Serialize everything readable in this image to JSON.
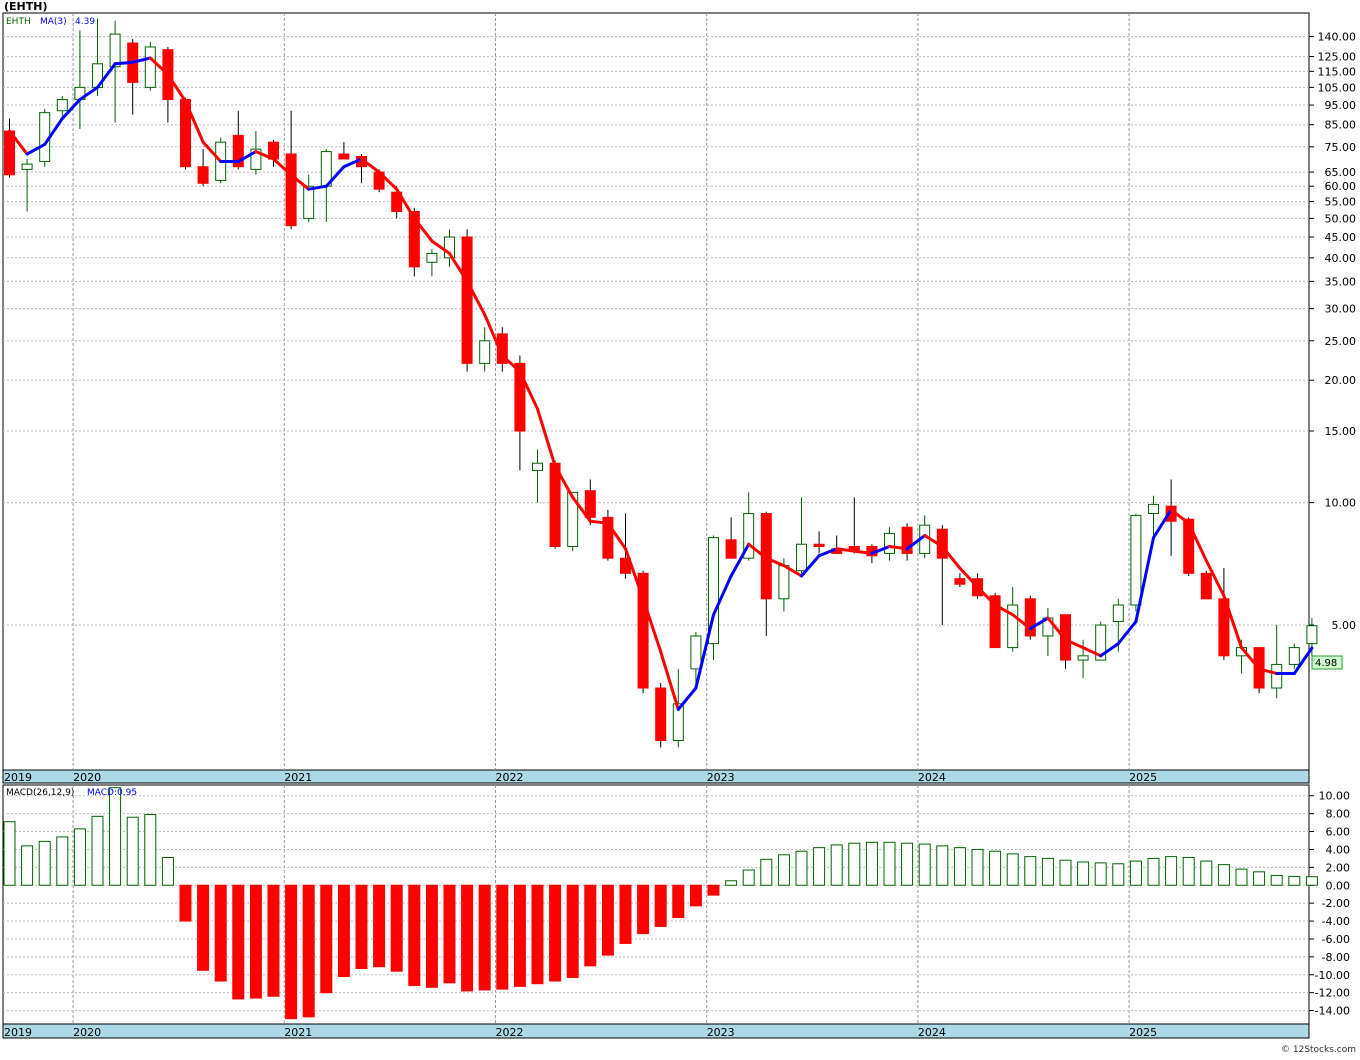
{
  "header": {
    "ticker_title": "(EHTH)",
    "price_legend_ticker": "EHTH",
    "price_legend_ma": "MA(3)",
    "price_legend_ma_value": "4.39",
    "macd_legend_label": "MACD(26,12,9)",
    "macd_legend_value": "MACD:0.95",
    "last_price_badge": "4.98",
    "watermark": "© 12Stocks.com"
  },
  "colors": {
    "up_candle": "#006400",
    "down_candle": "#ff0000",
    "ma_up": "#0000ff",
    "ma_down": "#ff0000",
    "grid": "#bbbbbb",
    "axis_band": "#add8e6",
    "badge_bg": "#ccffcc"
  },
  "chart_data": [
    {
      "type": "candlestick",
      "name": "price",
      "scale": "log",
      "ylim": [
        2.2,
        160
      ],
      "y_ticks": [
        140,
        125,
        115,
        105,
        95,
        85,
        75,
        65,
        60,
        55,
        50,
        45,
        40,
        35,
        30,
        25,
        20,
        15,
        10,
        5
      ],
      "y_tick_labels": [
        "140.00",
        "125.00",
        "115.00",
        "105.00",
        "95.00",
        "85.00",
        "75.00",
        "65.00",
        "60.00",
        "55.00",
        "50.00",
        "45.00",
        "40.00",
        "35.00",
        "30.00",
        "25.00",
        "20.00",
        "15.00",
        "10.00",
        "5.00"
      ],
      "x_labels": [
        "2019",
        "2020",
        "2021",
        "2022",
        "2023",
        "2024",
        "2025"
      ],
      "x_label_months": [
        0,
        4,
        16,
        28,
        40,
        52,
        64
      ],
      "candles": [
        {
          "o": 82,
          "h": 88,
          "l": 63,
          "c": 64
        },
        {
          "o": 66,
          "h": 70,
          "l": 52,
          "c": 68
        },
        {
          "o": 69,
          "h": 93,
          "l": 67,
          "c": 91
        },
        {
          "o": 92,
          "h": 100,
          "l": 88,
          "c": 98
        },
        {
          "o": 98,
          "h": 145,
          "l": 83,
          "c": 105
        },
        {
          "o": 105,
          "h": 155,
          "l": 100,
          "c": 120
        },
        {
          "o": 118,
          "h": 153,
          "l": 86,
          "c": 142
        },
        {
          "o": 135,
          "h": 138,
          "l": 90,
          "c": 108
        },
        {
          "o": 105,
          "h": 136,
          "l": 103,
          "c": 132
        },
        {
          "o": 130,
          "h": 132,
          "l": 86,
          "c": 98
        },
        {
          "o": 98,
          "h": 99,
          "l": 66,
          "c": 67
        },
        {
          "o": 67,
          "h": 74,
          "l": 60,
          "c": 61
        },
        {
          "o": 62,
          "h": 79,
          "l": 61,
          "c": 77
        },
        {
          "o": 80,
          "h": 92,
          "l": 66,
          "c": 67
        },
        {
          "o": 66,
          "h": 82,
          "l": 64,
          "c": 74
        },
        {
          "o": 77,
          "h": 78,
          "l": 67,
          "c": 70
        },
        {
          "o": 72,
          "h": 92,
          "l": 47,
          "c": 48
        },
        {
          "o": 50,
          "h": 64,
          "l": 49,
          "c": 60
        },
        {
          "o": 60,
          "h": 74,
          "l": 49,
          "c": 73
        },
        {
          "o": 72,
          "h": 77,
          "l": 70,
          "c": 70
        },
        {
          "o": 71,
          "h": 72,
          "l": 61,
          "c": 67
        },
        {
          "o": 65,
          "h": 66,
          "l": 58,
          "c": 59
        },
        {
          "o": 58,
          "h": 60,
          "l": 50,
          "c": 52
        },
        {
          "o": 52,
          "h": 53,
          "l": 36,
          "c": 38
        },
        {
          "o": 39,
          "h": 42,
          "l": 36,
          "c": 41
        },
        {
          "o": 40,
          "h": 47,
          "l": 38,
          "c": 45
        },
        {
          "o": 45,
          "h": 47,
          "l": 21,
          "c": 22
        },
        {
          "o": 22,
          "h": 27,
          "l": 21,
          "c": 25
        },
        {
          "o": 26,
          "h": 27,
          "l": 21,
          "c": 22
        },
        {
          "o": 22,
          "h": 23,
          "l": 12,
          "c": 15
        },
        {
          "o": 12,
          "h": 13.5,
          "l": 10,
          "c": 12.5
        },
        {
          "o": 12.5,
          "h": 12.7,
          "l": 7.7,
          "c": 7.8
        },
        {
          "o": 7.8,
          "h": 10.6,
          "l": 7.6,
          "c": 10.6
        },
        {
          "o": 10.7,
          "h": 11.4,
          "l": 8.8,
          "c": 9.2
        },
        {
          "o": 9.2,
          "h": 9.6,
          "l": 7.2,
          "c": 7.3
        },
        {
          "o": 7.3,
          "h": 9.4,
          "l": 6.5,
          "c": 6.7
        },
        {
          "o": 6.7,
          "h": 6.8,
          "l": 3.4,
          "c": 3.5
        },
        {
          "o": 3.5,
          "h": 3.6,
          "l": 2.5,
          "c": 2.6
        },
        {
          "o": 2.6,
          "h": 3.9,
          "l": 2.5,
          "c": 3.2
        },
        {
          "o": 3.9,
          "h": 4.8,
          "l": 3.5,
          "c": 4.7
        },
        {
          "o": 4.5,
          "h": 8.3,
          "l": 4.1,
          "c": 8.2
        },
        {
          "o": 8.1,
          "h": 9.2,
          "l": 7.3,
          "c": 7.3
        },
        {
          "o": 7.3,
          "h": 10.6,
          "l": 7.2,
          "c": 9.4
        },
        {
          "o": 9.4,
          "h": 9.5,
          "l": 4.7,
          "c": 5.8
        },
        {
          "o": 5.8,
          "h": 7.3,
          "l": 5.4,
          "c": 7.0
        },
        {
          "o": 6.8,
          "h": 10.3,
          "l": 6.7,
          "c": 7.9
        },
        {
          "o": 7.9,
          "h": 8.5,
          "l": 7.5,
          "c": 7.8
        },
        {
          "o": 7.7,
          "h": 8.3,
          "l": 7.5,
          "c": 7.5
        },
        {
          "o": 7.8,
          "h": 10.3,
          "l": 7.5,
          "c": 7.6
        },
        {
          "o": 7.8,
          "h": 7.9,
          "l": 7.1,
          "c": 7.4
        },
        {
          "o": 7.5,
          "h": 8.7,
          "l": 7.2,
          "c": 8.4
        },
        {
          "o": 8.7,
          "h": 8.9,
          "l": 7.2,
          "c": 7.5
        },
        {
          "o": 7.5,
          "h": 9.3,
          "l": 7.3,
          "c": 8.8
        },
        {
          "o": 8.6,
          "h": 8.8,
          "l": 5.0,
          "c": 7.3
        },
        {
          "o": 6.5,
          "h": 6.7,
          "l": 6.2,
          "c": 6.3
        },
        {
          "o": 6.5,
          "h": 6.7,
          "l": 5.8,
          "c": 5.9
        },
        {
          "o": 5.9,
          "h": 6.0,
          "l": 4.4,
          "c": 4.4
        },
        {
          "o": 4.4,
          "h": 6.2,
          "l": 4.3,
          "c": 5.6
        },
        {
          "o": 5.8,
          "h": 5.9,
          "l": 4.6,
          "c": 4.7
        },
        {
          "o": 4.7,
          "h": 5.5,
          "l": 4.2,
          "c": 5.2
        },
        {
          "o": 5.3,
          "h": 5.3,
          "l": 3.9,
          "c": 4.1
        },
        {
          "o": 4.1,
          "h": 4.6,
          "l": 3.7,
          "c": 4.2
        },
        {
          "o": 4.1,
          "h": 5.1,
          "l": 4.1,
          "c": 5.0
        },
        {
          "o": 5.1,
          "h": 5.8,
          "l": 4.3,
          "c": 5.6
        },
        {
          "o": 5.6,
          "h": 9.4,
          "l": 5.4,
          "c": 9.3
        },
        {
          "o": 9.4,
          "h": 10.4,
          "l": 8.3,
          "c": 9.9
        },
        {
          "o": 9.8,
          "h": 11.4,
          "l": 7.4,
          "c": 9.0
        },
        {
          "o": 9.1,
          "h": 9.2,
          "l": 6.6,
          "c": 6.7
        },
        {
          "o": 6.7,
          "h": 6.8,
          "l": 5.8,
          "c": 5.8
        },
        {
          "o": 5.8,
          "h": 6.9,
          "l": 4.1,
          "c": 4.2
        },
        {
          "o": 4.2,
          "h": 4.6,
          "l": 3.8,
          "c": 4.4
        },
        {
          "o": 4.4,
          "h": 4.4,
          "l": 3.4,
          "c": 3.5
        },
        {
          "o": 3.5,
          "h": 5.0,
          "l": 3.3,
          "c": 4.0
        },
        {
          "o": 4.0,
          "h": 4.5,
          "l": 3.9,
          "c": 4.4
        },
        {
          "o": 4.5,
          "h": 5.2,
          "l": 4.2,
          "c": 4.98
        }
      ],
      "ma3": [
        82,
        72,
        76,
        88,
        98,
        105,
        120,
        121,
        124,
        113,
        97,
        77,
        69,
        69,
        73,
        70,
        64,
        59,
        60,
        67,
        70,
        65,
        59,
        50,
        44,
        41,
        35,
        29,
        23,
        21,
        17,
        12.3,
        10.3,
        9.0,
        8.9,
        7.7,
        5.8,
        4.3,
        3.1,
        3.5,
        5.3,
        6.6,
        7.9,
        7.3,
        7.0,
        6.6,
        7.4,
        7.7,
        7.6,
        7.5,
        7.8,
        7.7,
        8.3,
        7.8,
        6.9,
        6.2,
        5.6,
        5.3,
        4.9,
        5.2,
        4.6,
        4.4,
        4.2,
        4.5,
        5.1,
        8.2,
        9.6,
        8.9,
        7.2,
        5.9,
        4.4,
        3.9,
        3.8,
        3.8,
        4.39
      ]
    },
    {
      "type": "bar",
      "name": "MACD(26,12,9)",
      "ylim": [
        -15.5,
        11.2
      ],
      "y_ticks": [
        10,
        8,
        6,
        4,
        2,
        0,
        -2,
        -4,
        -6,
        -8,
        -10,
        -12,
        -14
      ],
      "y_tick_labels": [
        "10.00",
        "8.00",
        "6.00",
        "4.00",
        "2.00",
        "0.00",
        "-2.00",
        "-4.00",
        "-6.00",
        "-8.00",
        "-10.00",
        "-12.00",
        "-14.00"
      ],
      "x_labels": [
        "2019",
        "2020",
        "2021",
        "2022",
        "2023",
        "2024",
        "2025"
      ],
      "values": [
        7.1,
        4.4,
        4.9,
        5.4,
        6.3,
        7.7,
        10.9,
        7.6,
        7.9,
        3.1,
        -4.0,
        -9.5,
        -10.7,
        -12.7,
        -12.6,
        -12.4,
        -14.9,
        -14.7,
        -12.0,
        -10.2,
        -9.3,
        -9.1,
        -9.6,
        -11.2,
        -11.4,
        -10.9,
        -11.8,
        -11.7,
        -11.6,
        -11.3,
        -11.0,
        -10.7,
        -10.3,
        -9.0,
        -7.8,
        -6.5,
        -5.4,
        -4.6,
        -3.6,
        -2.3,
        -1.1,
        0.5,
        1.7,
        2.9,
        3.4,
        3.8,
        4.2,
        4.5,
        4.7,
        4.8,
        4.8,
        4.7,
        4.6,
        4.4,
        4.2,
        4.0,
        3.8,
        3.5,
        3.2,
        3.0,
        2.8,
        2.6,
        2.5,
        2.4,
        2.7,
        3.0,
        3.2,
        3.1,
        2.7,
        2.3,
        1.8,
        1.5,
        1.1,
        0.97,
        0.95
      ]
    }
  ]
}
